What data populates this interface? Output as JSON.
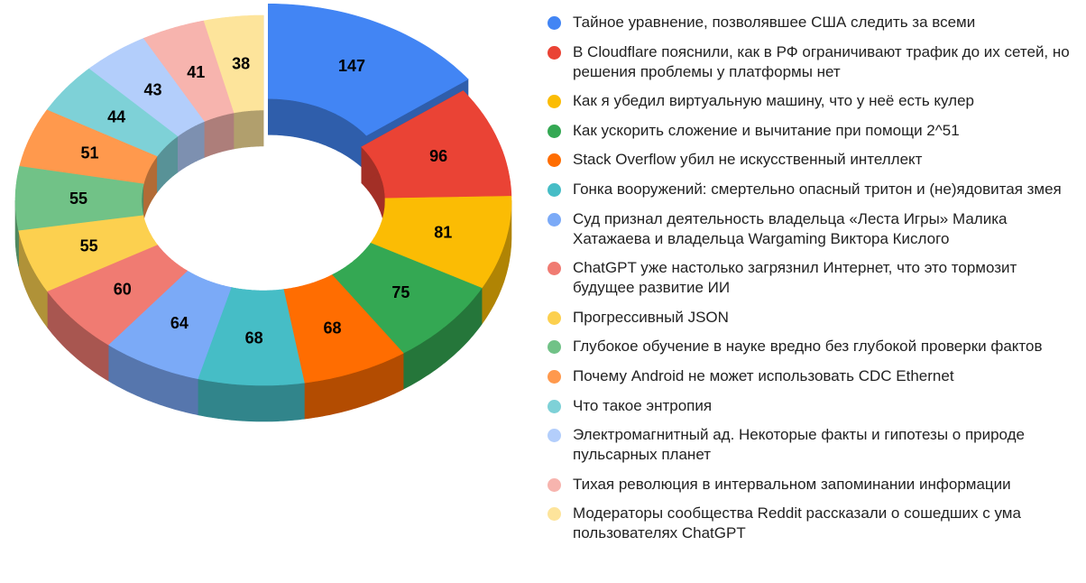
{
  "chart_data": {
    "type": "pie",
    "subtype": "3d-donut",
    "title": "",
    "legend_position": "right",
    "exploded_slice_index": 0,
    "categories": [
      "Тайное уравнение, позволявшее США следить за всеми",
      "В Cloudflare пояснили, как в РФ ограничивают трафик до их сетей, но решения проблемы у платформы нет",
      "Как я убедил виртуальную машину, что у неё есть кулер",
      "Как ускорить сложение и вычитание при помощи 2^51",
      "Stack Overflow убил не искусственный интеллект",
      "Гонка вооружений: смертельно опасный тритон и (не)ядовитая змея",
      "Суд признал деятельность владельца «Леста Игры» Малика Хатажаева и владельца Wargaming Виктора Кислого",
      "ChatGPT уже настолько загрязнил Интернет, что это тормозит будущее развитие ИИ",
      "Прогрессивный JSON",
      "Глубокое обучение в науке вредно без глубокой проверки фактов",
      "Почему Android не может использовать CDC Ethernet",
      "Что такое энтропия",
      "Электромагнитный ад. Некоторые факты и гипотезы о природе пульсарных планет",
      "Тихая революция в интервальном запоминании информации",
      "Модераторы сообщества Reddit рассказали о сошедших с ума пользователях ChatGPT"
    ],
    "values": [
      147,
      96,
      81,
      75,
      68,
      68,
      64,
      60,
      55,
      55,
      51,
      44,
      43,
      41,
      38
    ],
    "colors": [
      "#4285f4",
      "#ea4335",
      "#fbbc04",
      "#34a853",
      "#ff6d01",
      "#46bdc6",
      "#7baaf7",
      "#f07b72",
      "#fcd04f",
      "#71c287",
      "#ff994d",
      "#7ed1d7",
      "#b3cefb",
      "#f7b4ae",
      "#fde49b"
    ],
    "side_colors": [
      "#2f5eab",
      "#a32f26",
      "#b08404",
      "#25763a",
      "#b34c01",
      "#31858b",
      "#5676ad",
      "#a85650",
      "#b09238",
      "#4f885f",
      "#b26b36",
      "#589297",
      "#7d90b0",
      "#ad7e7a",
      "#b19f6d"
    ]
  },
  "legend": {
    "items": [
      {
        "label": "Тайное уравнение, позволявшее США следить за всеми",
        "color": "#4285f4"
      },
      {
        "label": "В Cloudflare пояснили, как в РФ ограничивают трафик до их сетей, но решения проблемы у платформы нет",
        "color": "#ea4335"
      },
      {
        "label": "Как я убедил виртуальную машину, что у неё есть кулер",
        "color": "#fbbc04"
      },
      {
        "label": "Как ускорить сложение и вычитание при помощи 2^51",
        "color": "#34a853"
      },
      {
        "label": "Stack Overflow убил не искусственный интеллект",
        "color": "#ff6d01"
      },
      {
        "label": "Гонка вооружений: смертельно опасный тритон и (не)ядовитая змея",
        "color": "#46bdc6"
      },
      {
        "label": "Суд признал деятельность владельца «Леста Игры» Малика Хатажаева и владельца Wargaming Виктора Кислого",
        "color": "#7baaf7"
      },
      {
        "label": "ChatGPT уже настолько загрязнил Интернет, что это тормозит будущее развитие ИИ",
        "color": "#f07b72"
      },
      {
        "label": "Прогрессивный JSON",
        "color": "#fcd04f"
      },
      {
        "label": "Глубокое обучение в науке вредно без глубокой проверки фактов",
        "color": "#71c287"
      },
      {
        "label": "Почему Android не может использовать CDC Ethernet",
        "color": "#ff994d"
      },
      {
        "label": "Что такое энтропия",
        "color": "#7ed1d7"
      },
      {
        "label": "Электромагнитный ад. Некоторые факты и гипотезы о природе пульсарных планет",
        "color": "#b3cefb"
      },
      {
        "label": "Тихая революция в интервальном запоминании информации",
        "color": "#f7b4ae"
      },
      {
        "label": "Модераторы сообщества Reddit рассказали о сошедших с ума пользователях ChatGPT",
        "color": "#fde49b"
      }
    ]
  }
}
